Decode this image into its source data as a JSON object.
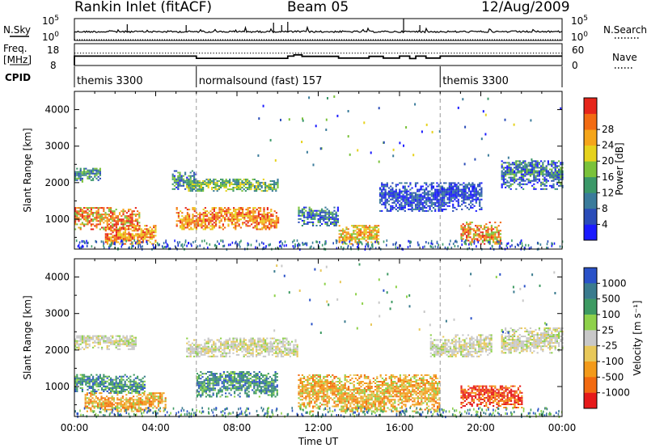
{
  "header": {
    "title": "Rankin Inlet (fitACF)",
    "beam": "Beam 05",
    "date": "12/Aug/2009"
  },
  "chart_data": [
    {
      "type": "line",
      "name_label": "N.Sky",
      "right_label": "N.Search",
      "ylim_labels": [
        "10^0",
        "10^5"
      ],
      "y_left_ticks": [
        "10^5",
        "10^0"
      ],
      "y_right_ticks": [
        "10^5",
        "10^0"
      ],
      "series": [
        {
          "name": "N.Sky",
          "style": "solid",
          "baseline_level": 0.6
        },
        {
          "name": "N.Search",
          "style": "dotted"
        }
      ]
    },
    {
      "type": "line",
      "left_label": [
        "Freq.",
        "[MHz]"
      ],
      "right_label": "Nave",
      "y_left_ticks": [
        "18",
        "8"
      ],
      "y_right_ticks": [
        "60",
        "0"
      ],
      "freq_ylim": [
        8,
        18
      ],
      "nave_ylim": [
        0,
        60
      ],
      "freq_segments": [
        {
          "x": [
            0.0,
            6.0
          ],
          "y": 12.3
        },
        {
          "x": [
            6.0,
            10.5
          ],
          "y": 11.3
        },
        {
          "x": [
            10.5,
            10.8
          ],
          "y": 12.3
        },
        {
          "x": [
            10.8,
            11.2
          ],
          "y": 12.9
        },
        {
          "x": [
            11.2,
            13.0
          ],
          "y": 12.2
        },
        {
          "x": [
            13.0,
            14.5
          ],
          "y": 11.4
        },
        {
          "x": [
            14.5,
            15.2
          ],
          "y": 12.2
        },
        {
          "x": [
            15.2,
            16.0
          ],
          "y": 11.4
        },
        {
          "x": [
            16.0,
            16.5
          ],
          "y": 12.3
        },
        {
          "x": [
            16.5,
            16.8
          ],
          "y": 11.2
        },
        {
          "x": [
            16.8,
            17.3
          ],
          "y": 12.3
        },
        {
          "x": [
            17.3,
            18.0
          ],
          "y": 11.4
        },
        {
          "x": [
            18.0,
            24.0
          ],
          "y": 12.3
        }
      ],
      "nave_series": {
        "name": "Nave",
        "style": "dotted",
        "value": 34
      }
    },
    {
      "type": "table",
      "label": "CPID",
      "segments": [
        {
          "start": 0.0,
          "text": "themis 3300"
        },
        {
          "start": 6.0,
          "text": "normalsound (fast) 157"
        },
        {
          "start": 18.0,
          "text": "themis 3300"
        }
      ]
    },
    {
      "type": "heatmap",
      "ylabel": "Slant Range [km]",
      "yticks": [
        1000,
        2000,
        3000,
        4000
      ],
      "ylim": [
        180,
        4500
      ],
      "colorbar": {
        "label": "Power [dB]",
        "ticks": [
          "4",
          "8",
          "12",
          "16",
          "20",
          "24",
          "28"
        ],
        "colors": [
          "#1a1aff",
          "#2a4cb8",
          "#3a7b9b",
          "#3b9868",
          "#7ac23a",
          "#e6d21c",
          "#f5a51a",
          "#f26b12",
          "#e6251a"
        ]
      },
      "features": [
        {
          "t": [
            0.0,
            1.3
          ],
          "r": [
            2000,
            2400
          ],
          "level": "12-16"
        },
        {
          "t": [
            0.0,
            3.2
          ],
          "r": [
            700,
            1300
          ],
          "level": "20-28"
        },
        {
          "t": [
            1.5,
            4.0
          ],
          "r": [
            300,
            800
          ],
          "level": "24-28"
        },
        {
          "t": [
            4.8,
            6.0
          ],
          "r": [
            1800,
            2300
          ],
          "level": "8-16"
        },
        {
          "t": [
            5.0,
            10.0
          ],
          "r": [
            700,
            1300
          ],
          "level": "24-28"
        },
        {
          "t": [
            5.5,
            10.0
          ],
          "r": [
            1750,
            2100
          ],
          "level": "12-20"
        },
        {
          "t": [
            11.0,
            13.0
          ],
          "r": [
            800,
            1300
          ],
          "level": "8-16"
        },
        {
          "t": [
            13.0,
            15.0
          ],
          "r": [
            300,
            800
          ],
          "level": "16-24"
        },
        {
          "t": [
            15.0,
            20.0
          ],
          "r": [
            1200,
            2000
          ],
          "level": "4-12"
        },
        {
          "t": [
            19.0,
            21.0
          ],
          "r": [
            300,
            900
          ],
          "level": "20-28"
        },
        {
          "t": [
            21.0,
            24.0
          ],
          "r": [
            1800,
            2600
          ],
          "level": "8-16"
        }
      ]
    },
    {
      "type": "heatmap",
      "ylabel": "Slant Range [km]",
      "yticks": [
        1000,
        2000,
        3000,
        4000
      ],
      "ylim": [
        180,
        4500
      ],
      "colorbar": {
        "label": "Velocity [m s⁻¹]",
        "ticks": [
          "1000",
          "500",
          "100",
          "25",
          "-25",
          "-100",
          "-500",
          "-1000"
        ],
        "colors": [
          "#2a52c8",
          "#3a7b8e",
          "#3d9a62",
          "#8ed14a",
          "#c8c8c8",
          "#e8c85a",
          "#f39a1a",
          "#f26a10",
          "#e6191a"
        ]
      },
      "features": [
        {
          "t": [
            0.0,
            3.0
          ],
          "r": [
            2000,
            2400
          ],
          "velocity": "gray (-25..25)"
        },
        {
          "t": [
            0.0,
            3.5
          ],
          "r": [
            800,
            1300
          ],
          "velocity": "green (100..500)"
        },
        {
          "t": [
            0.5,
            4.5
          ],
          "r": [
            300,
            800
          ],
          "velocity": "orange (-100..-500)"
        },
        {
          "t": [
            5.5,
            11.0
          ],
          "r": [
            1800,
            2300
          ],
          "velocity": "gray (-25..25)"
        },
        {
          "t": [
            6.0,
            10.0
          ],
          "r": [
            700,
            1400
          ],
          "velocity": "green (100..500)"
        },
        {
          "t": [
            11.0,
            18.0
          ],
          "r": [
            300,
            1300
          ],
          "velocity": "orange (-100..-500)"
        },
        {
          "t": [
            17.5,
            20.5
          ],
          "r": [
            1800,
            2400
          ],
          "velocity": "gray (-25..25)"
        },
        {
          "t": [
            19.0,
            22.0
          ],
          "r": [
            400,
            1000
          ],
          "velocity": "red (-500..-1000)"
        },
        {
          "t": [
            21.0,
            24.0
          ],
          "r": [
            1900,
            2600
          ],
          "velocity": "gray (-25..25)"
        }
      ]
    }
  ],
  "axes": {
    "xlabel": "Time UT",
    "xticks": [
      "00:00",
      "04:00",
      "08:00",
      "12:00",
      "16:00",
      "20:00",
      "00:00"
    ],
    "xlim_hours": [
      0,
      24
    ],
    "dashed_vlines_hours": [
      6,
      18
    ]
  }
}
